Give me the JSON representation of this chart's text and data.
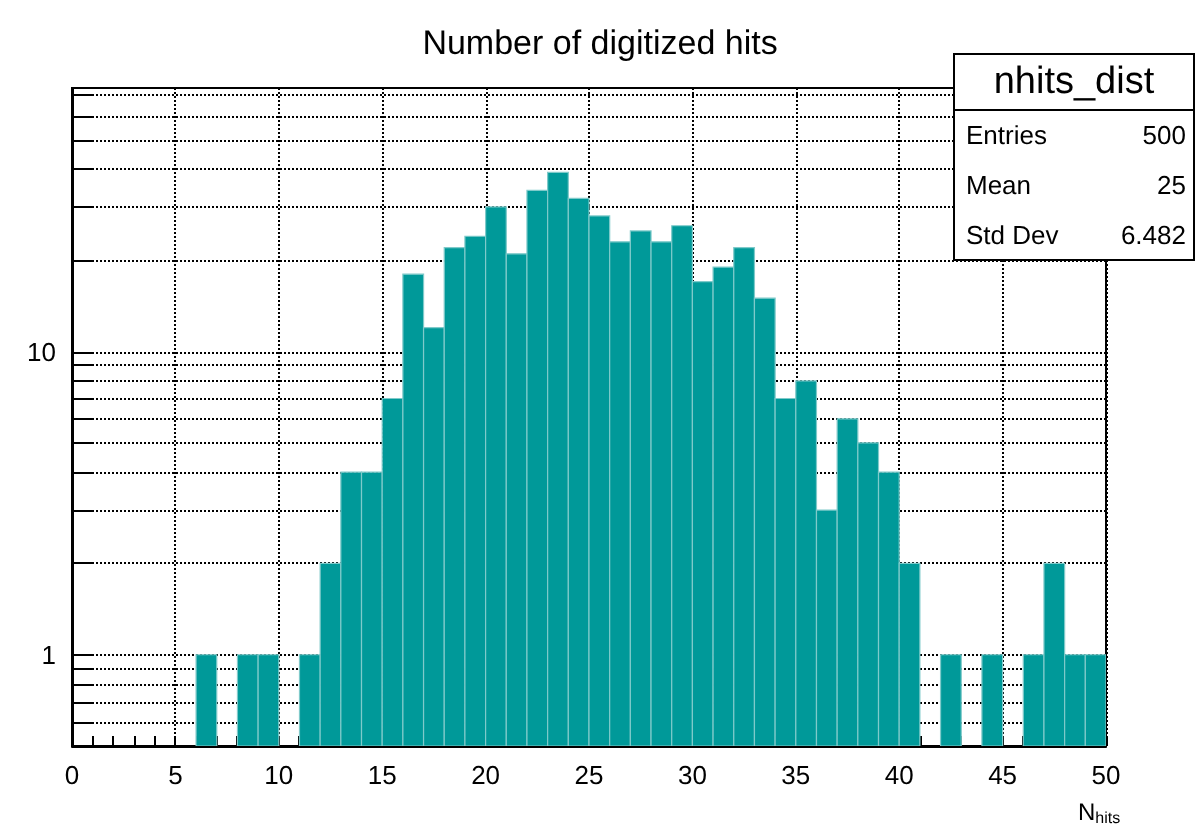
{
  "chart_data": {
    "type": "histogram",
    "title": "Number of digitized hits",
    "xlabel": "N$_{hits}$",
    "bins": [
      0,
      1,
      2,
      3,
      4,
      5,
      6,
      7,
      8,
      9,
      10,
      11,
      12,
      13,
      14,
      15,
      16,
      17,
      18,
      19,
      20,
      21,
      22,
      23,
      24,
      25,
      26,
      27,
      28,
      29,
      30,
      31,
      32,
      33,
      34,
      35,
      36,
      37,
      38,
      39,
      40,
      41,
      42,
      43,
      44,
      45,
      46,
      47,
      48,
      49,
      50
    ],
    "values": [
      null,
      null,
      null,
      null,
      null,
      null,
      1,
      null,
      1,
      1,
      null,
      1,
      2,
      4,
      4,
      7,
      18,
      12,
      22,
      24,
      30,
      21,
      34,
      39,
      32,
      28,
      23,
      25,
      23,
      26,
      17,
      19,
      22,
      15,
      7,
      8,
      3,
      6,
      5,
      4,
      2,
      null,
      1,
      null,
      1,
      null,
      1,
      2,
      1,
      1
    ],
    "color": "#009999",
    "log": "y",
    "xlim": [
      0,
      50
    ],
    "xticks": [
      0,
      {
        "value": 1,
        "label": null
      },
      {
        "value": 2,
        "label": null
      },
      {
        "value": 3,
        "label": null
      },
      {
        "value": 4,
        "label": null
      },
      5,
      {
        "value": 6,
        "label": null
      },
      {
        "value": 7,
        "label": null
      },
      {
        "value": 8,
        "label": null
      },
      {
        "value": 9,
        "label": null
      },
      10,
      {
        "value": 11,
        "label": null
      },
      {
        "value": 12,
        "label": null
      },
      {
        "value": 13,
        "label": null
      },
      {
        "value": 14,
        "label": null
      },
      15,
      {
        "value": 16,
        "label": null
      },
      {
        "value": 17,
        "label": null
      },
      {
        "value": 18,
        "label": null
      },
      {
        "value": 19,
        "label": null
      },
      20,
      {
        "value": 21,
        "label": null
      },
      {
        "value": 22,
        "label": null
      },
      {
        "value": 23,
        "label": null
      },
      {
        "value": 24,
        "label": null
      },
      25,
      {
        "value": 26,
        "label": null
      },
      {
        "value": 27,
        "label": null
      },
      {
        "value": 28,
        "label": null
      },
      {
        "value": 29,
        "label": null
      },
      30,
      {
        "value": 31,
        "label": null
      },
      {
        "value": 32,
        "label": null
      },
      {
        "value": 33,
        "label": null
      },
      {
        "value": 34,
        "label": null
      },
      35,
      {
        "value": 36,
        "label": null
      },
      {
        "value": 37,
        "label": null
      },
      {
        "value": 38,
        "label": null
      },
      {
        "value": 39,
        "label": null
      },
      40,
      {
        "value": 41,
        "label": null
      },
      {
        "value": 42,
        "label": null
      },
      {
        "value": 43,
        "label": null
      },
      {
        "value": 44,
        "label": null
      },
      45,
      {
        "value": 46,
        "label": null
      },
      {
        "value": 47,
        "label": null
      },
      {
        "value": 48,
        "label": null
      },
      {
        "value": 49,
        "label": null
      },
      50
    ],
    "ylim": [
      0.5,
      74
    ],
    "yticks": [
      {
        "value": 0.6,
        "label": null
      },
      {
        "value": 0.7,
        "label": null
      },
      {
        "value": 0.8,
        "label": null
      },
      {
        "value": 0.9,
        "label": null
      },
      1,
      {
        "value": 2,
        "label": null
      },
      {
        "value": 3,
        "label": null
      },
      {
        "value": 4,
        "label": null
      },
      {
        "value": 5,
        "label": null
      },
      {
        "value": 6,
        "label": null
      },
      {
        "value": 7,
        "label": null
      },
      {
        "value": 8,
        "label": null
      },
      {
        "value": 9,
        "label": null
      },
      10,
      {
        "value": 20,
        "label": null
      },
      {
        "value": 30,
        "label": null
      },
      {
        "value": 40,
        "label": null
      },
      {
        "value": 50,
        "label": null
      },
      {
        "value": 60,
        "label": null
      },
      {
        "value": 70,
        "label": null
      }
    ],
    "grid": true,
    "annotations": [
      "nhits_dist",
      "Entries 500",
      "Mean 25",
      "Std Dev 6.482"
    ]
  }
}
